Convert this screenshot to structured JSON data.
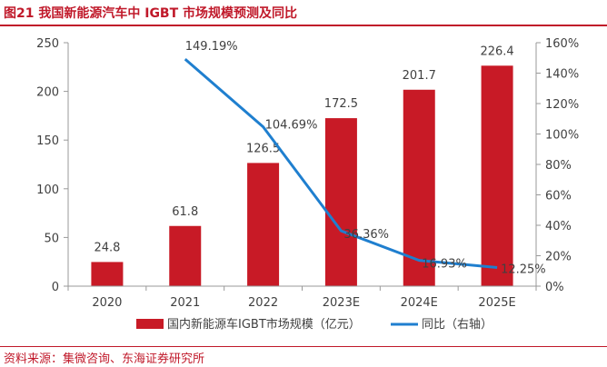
{
  "figure": {
    "title": "图21  我国新能源汽车中 IGBT 市场规模预测及同比",
    "source": "资料来源：集微咨询、东海证券研究所"
  },
  "colors": {
    "accent": "#c0192a",
    "bar": "#c81a26",
    "line": "#1f7fcf",
    "axis": "#999999",
    "text": "#404040"
  },
  "chart_data": {
    "type": "bar",
    "categories": [
      "2020",
      "2021",
      "2022",
      "2023E",
      "2024E",
      "2025E"
    ],
    "series": [
      {
        "name": "国内新能源车IGBT市场规模（亿元）",
        "type": "bar",
        "axis": "left",
        "values": [
          24.8,
          61.8,
          126.5,
          172.5,
          201.7,
          226.4
        ],
        "labels": [
          "24.8",
          "61.8",
          "126.5",
          "172.5",
          "201.7",
          "226.4"
        ]
      },
      {
        "name": "同比（右轴）",
        "type": "line",
        "axis": "right",
        "values": [
          null,
          149.19,
          104.69,
          36.36,
          16.93,
          12.25
        ],
        "labels": [
          "",
          "149.19%",
          "104.69%",
          "36.36%",
          "16.93%",
          "12.25%"
        ]
      }
    ],
    "y_left": {
      "ylim": [
        0,
        250
      ],
      "ticks": [
        "0",
        "50",
        "100",
        "150",
        "200",
        "250"
      ]
    },
    "y_right": {
      "ylim": [
        0,
        160
      ],
      "ticks": [
        "0%",
        "20%",
        "40%",
        "60%",
        "80%",
        "100%",
        "120%",
        "140%",
        "160%"
      ]
    },
    "grid": false,
    "legend": "bottom"
  }
}
